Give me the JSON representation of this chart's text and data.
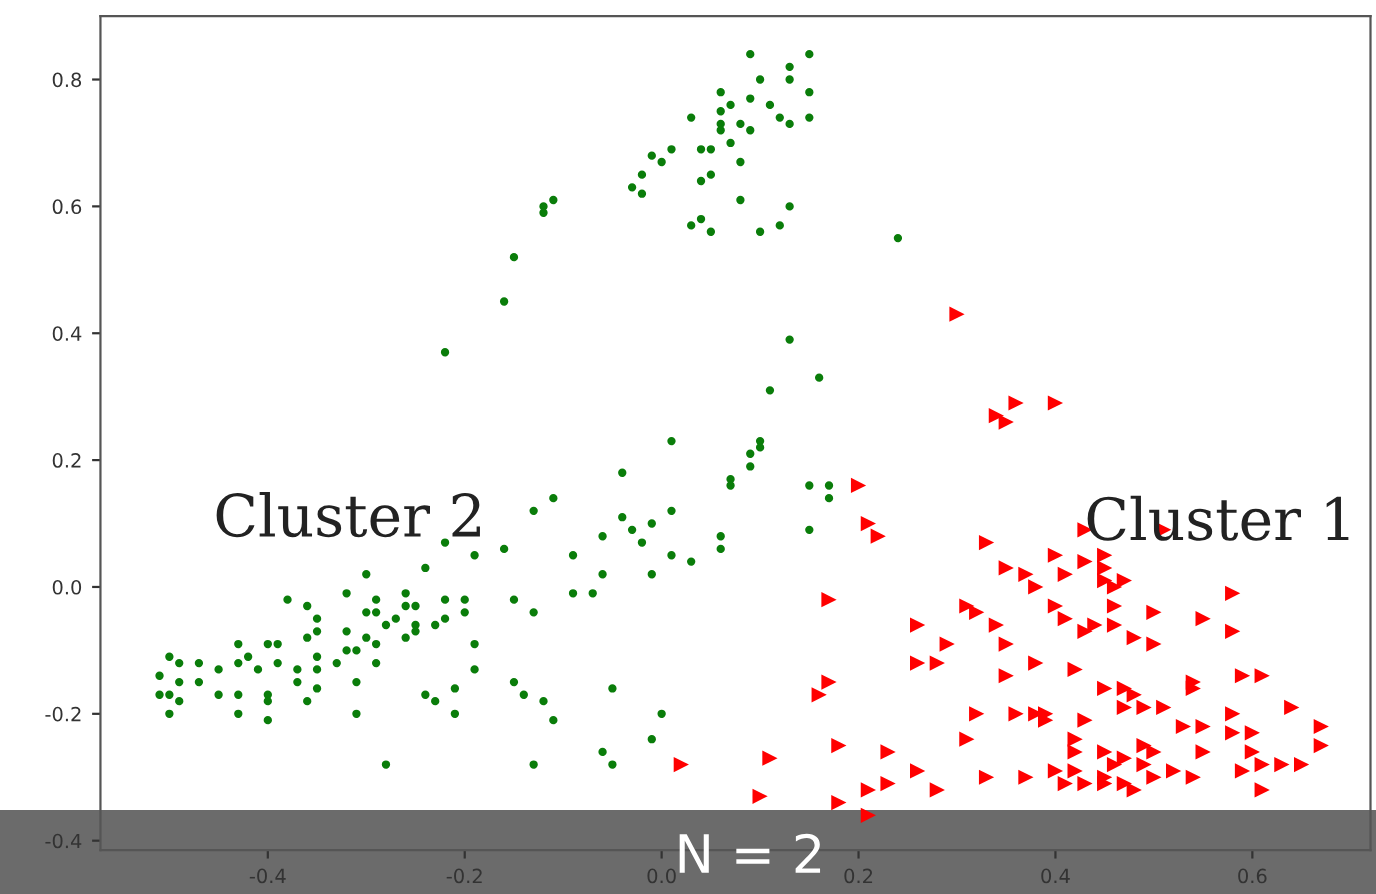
{
  "chart_data": {
    "type": "scatter",
    "xlim": [
      -0.57,
      0.72
    ],
    "ylim": [
      -0.415,
      0.9
    ],
    "xticks": [
      -0.4,
      -0.2,
      {
        "value": 0,
        "label": "0.0"
      },
      0.2,
      0.4,
      0.6
    ],
    "yticks": [
      -0.4,
      -0.2,
      {
        "value": 0,
        "label": "0.0"
      },
      0.2,
      0.4,
      0.6,
      0.8
    ],
    "grid": false,
    "legend": false,
    "annotations": [
      "Cluster 2",
      "Cluster 1",
      "N = 2"
    ],
    "series": [
      {
        "color": "#0a7d0a",
        "marker": "circle",
        "x": [
          0.09,
          0.15,
          0.13,
          0.13,
          0.1,
          0.06,
          0.15,
          0.09,
          0.07,
          0.11,
          0.06,
          0.15,
          0.12,
          0.03,
          0.06,
          0.13,
          0.08,
          0.09,
          0.06,
          0.01,
          0.05,
          0.07,
          0.04,
          -0.01,
          0.0,
          0.08,
          0.05,
          0.04,
          -0.02,
          -0.03,
          -0.02,
          0.08,
          0.13,
          0.04,
          0.03,
          0.05,
          0.1,
          0.12,
          -0.11,
          -0.12,
          -0.12,
          -0.15,
          -0.16,
          -0.22,
          0.24,
          0.13,
          0.16,
          0.11,
          0.01,
          0.1,
          0.1,
          0.09,
          0.09,
          0.07,
          0.07,
          0.15,
          0.17,
          0.17,
          0.15,
          -0.04,
          -0.13,
          -0.11,
          -0.04,
          -0.03,
          -0.01,
          0.01,
          -0.06,
          -0.02,
          0.01,
          0.03,
          -0.01,
          -0.06,
          -0.07,
          -0.09,
          -0.09,
          0.06,
          0.06,
          -0.16,
          -0.19,
          -0.22,
          -0.24,
          -0.3,
          -0.32,
          -0.26,
          -0.29,
          -0.22,
          -0.15,
          -0.13,
          -0.2,
          -0.2,
          -0.22,
          -0.25,
          -0.26,
          -0.29,
          -0.3,
          -0.28,
          -0.27,
          -0.25,
          -0.23,
          -0.25,
          -0.26,
          -0.29,
          -0.3,
          -0.32,
          -0.32,
          -0.31,
          -0.29,
          -0.33,
          -0.35,
          -0.36,
          -0.38,
          -0.35,
          -0.35,
          -0.36,
          -0.39,
          -0.4,
          -0.42,
          -0.43,
          -0.43,
          -0.41,
          -0.39,
          -0.37,
          -0.35,
          -0.45,
          -0.47,
          -0.49,
          -0.5,
          -0.51,
          -0.49,
          -0.47,
          -0.5,
          -0.49,
          -0.45,
          -0.43,
          -0.4,
          -0.37,
          -0.35,
          -0.36,
          -0.4,
          -0.43,
          -0.5,
          -0.4,
          -0.31,
          -0.31,
          -0.24,
          -0.23,
          -0.21,
          -0.21,
          -0.19,
          -0.19,
          -0.15,
          -0.14,
          -0.12,
          -0.11,
          -0.05,
          0.0,
          -0.01,
          -0.06,
          -0.05,
          -0.13,
          -0.28,
          -0.51
        ],
        "values": [
          0.84,
          0.84,
          0.82,
          0.8,
          0.8,
          0.78,
          0.78,
          0.77,
          0.76,
          0.76,
          0.75,
          0.74,
          0.74,
          0.74,
          0.73,
          0.73,
          0.73,
          0.72,
          0.72,
          0.69,
          0.69,
          0.7,
          0.69,
          0.68,
          0.67,
          0.67,
          0.65,
          0.64,
          0.65,
          0.63,
          0.62,
          0.61,
          0.6,
          0.58,
          0.57,
          0.56,
          0.56,
          0.57,
          0.61,
          0.6,
          0.59,
          0.52,
          0.45,
          0.37,
          0.55,
          0.39,
          0.33,
          0.31,
          0.23,
          0.23,
          0.22,
          0.21,
          0.19,
          0.17,
          0.16,
          0.16,
          0.16,
          0.14,
          0.09,
          0.18,
          0.12,
          0.14,
          0.11,
          0.09,
          0.1,
          0.12,
          0.08,
          0.07,
          0.05,
          0.04,
          0.02,
          0.02,
          -0.01,
          -0.01,
          0.05,
          0.08,
          0.06,
          0.06,
          0.05,
          0.07,
          0.03,
          0.02,
          -0.01,
          -0.01,
          -0.02,
          -0.02,
          -0.02,
          -0.04,
          -0.02,
          -0.04,
          -0.05,
          -0.03,
          -0.03,
          -0.04,
          -0.04,
          -0.06,
          -0.05,
          -0.06,
          -0.06,
          -0.07,
          -0.08,
          -0.09,
          -0.08,
          -0.07,
          -0.1,
          -0.1,
          -0.12,
          -0.12,
          -0.11,
          -0.03,
          -0.02,
          -0.05,
          -0.07,
          -0.08,
          -0.09,
          -0.09,
          -0.11,
          -0.09,
          -0.12,
          -0.13,
          -0.12,
          -0.13,
          -0.13,
          -0.13,
          -0.12,
          -0.12,
          -0.11,
          -0.14,
          -0.15,
          -0.15,
          -0.17,
          -0.18,
          -0.17,
          -0.17,
          -0.17,
          -0.15,
          -0.16,
          -0.18,
          -0.18,
          -0.2,
          -0.2,
          -0.21,
          -0.15,
          -0.2,
          -0.17,
          -0.18,
          -0.16,
          -0.2,
          -0.13,
          -0.09,
          -0.15,
          -0.17,
          -0.18,
          -0.21,
          -0.16,
          -0.2,
          -0.24,
          -0.26,
          -0.28,
          -0.28,
          -0.28,
          -0.17
        ]
      },
      {
        "color": "#ff0000",
        "marker": "triangle",
        "x": [
          0.3,
          0.36,
          0.4,
          0.34,
          0.35,
          0.2,
          0.21,
          0.22,
          0.17,
          0.17,
          0.16,
          0.11,
          0.1,
          0.18,
          0.21,
          0.21,
          0.18,
          0.23,
          0.23,
          0.26,
          0.28,
          0.31,
          0.32,
          0.33,
          0.37,
          0.36,
          0.38,
          0.39,
          0.39,
          0.4,
          0.41,
          0.42,
          0.43,
          0.45,
          0.45,
          0.47,
          0.48,
          0.46,
          0.47,
          0.49,
          0.5,
          0.5,
          0.52,
          0.54,
          0.55,
          0.53,
          0.55,
          0.58,
          0.59,
          0.6,
          0.6,
          0.61,
          0.61,
          0.63,
          0.65,
          0.67,
          0.67,
          0.64,
          0.58,
          0.54,
          0.54,
          0.51,
          0.49,
          0.48,
          0.47,
          0.47,
          0.45,
          0.43,
          0.42,
          0.42,
          0.45,
          0.49,
          0.59,
          0.61,
          0.42,
          0.38,
          0.35,
          0.28,
          0.26,
          0.26,
          0.29,
          0.31,
          0.32,
          0.34,
          0.35,
          0.4,
          0.41,
          0.43,
          0.44,
          0.46,
          0.48,
          0.5,
          0.5,
          0.46,
          0.46,
          0.45,
          0.45,
          0.45,
          0.43,
          0.41,
          0.4,
          0.38,
          0.37,
          0.35,
          0.33,
          0.43,
          0.51,
          0.55,
          0.58,
          0.58,
          0.47,
          0.02
        ],
        "values": [
          0.43,
          0.29,
          0.29,
          0.27,
          0.26,
          0.16,
          0.1,
          0.08,
          -0.02,
          -0.15,
          -0.17,
          -0.27,
          -0.33,
          -0.34,
          -0.36,
          -0.32,
          -0.25,
          -0.26,
          -0.31,
          -0.29,
          -0.32,
          -0.24,
          -0.2,
          -0.3,
          -0.3,
          -0.2,
          -0.2,
          -0.2,
          -0.21,
          -0.29,
          -0.31,
          -0.29,
          -0.31,
          -0.3,
          -0.31,
          -0.31,
          -0.32,
          -0.28,
          -0.27,
          -0.28,
          -0.26,
          -0.3,
          -0.29,
          -0.3,
          -0.26,
          -0.22,
          -0.22,
          -0.23,
          -0.29,
          -0.23,
          -0.26,
          -0.28,
          -0.32,
          -0.28,
          -0.28,
          -0.25,
          -0.22,
          -0.19,
          -0.2,
          -0.15,
          -0.16,
          -0.19,
          -0.19,
          -0.17,
          -0.16,
          -0.19,
          -0.16,
          -0.21,
          -0.24,
          -0.26,
          -0.26,
          -0.25,
          -0.14,
          -0.14,
          -0.13,
          -0.12,
          -0.14,
          -0.12,
          -0.12,
          -0.06,
          -0.09,
          -0.03,
          -0.04,
          -0.06,
          -0.09,
          -0.03,
          -0.05,
          -0.07,
          -0.06,
          -0.06,
          -0.08,
          -0.09,
          -0.04,
          -0.03,
          0.0,
          0.03,
          0.01,
          0.05,
          0.04,
          0.02,
          0.05,
          0.0,
          0.02,
          0.03,
          0.07,
          0.09,
          0.09,
          -0.05,
          -0.07,
          -0.01,
          0.01,
          -0.28
        ]
      }
    ]
  }
}
